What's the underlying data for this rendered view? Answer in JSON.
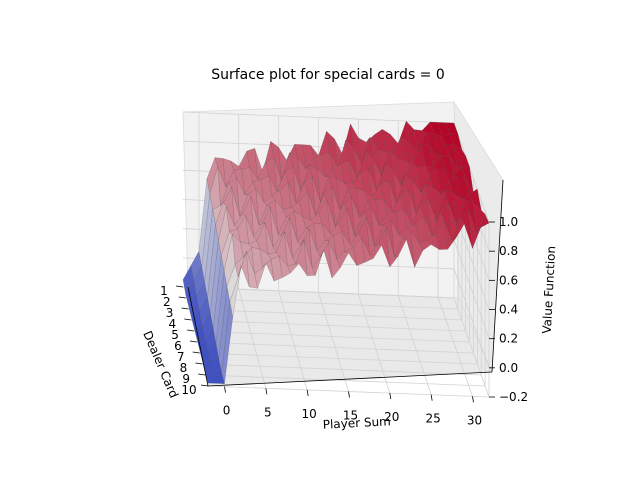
{
  "chart_data": {
    "type": "surface",
    "title": "Surface plot for special cards = 0",
    "xlabel": "Player Sum",
    "ylabel": "Dealer Card",
    "zlabel": "Value Function",
    "x_ticks": [
      "0",
      "5",
      "10",
      "15",
      "20",
      "25",
      "30"
    ],
    "y_ticks": [
      "1",
      "2",
      "3",
      "4",
      "5",
      "6",
      "7",
      "8",
      "9",
      "10"
    ],
    "z_ticks": [
      "−0.2",
      "0.0",
      "0.2",
      "0.4",
      "0.6",
      "0.8",
      "1.0"
    ],
    "xlim": [
      -2,
      32
    ],
    "ylim": [
      1,
      10
    ],
    "zlim": [
      -0.2,
      1.0
    ],
    "grid": true,
    "colormap": "coolwarm",
    "colors": {
      "low": "#3b4cc0",
      "mid": "#dddcdc",
      "high": "#b40426",
      "pane": "#f2f2f2",
      "grid": "#d2d2d2"
    },
    "surface_profile": {
      "x": [
        -2,
        0,
        1,
        2,
        4,
        6,
        8,
        10,
        12,
        14,
        16,
        18,
        20,
        22,
        24,
        26,
        28,
        30,
        32
      ],
      "value": [
        -0.15,
        0.05,
        0.55,
        0.6,
        0.62,
        0.65,
        0.67,
        0.7,
        0.72,
        0.74,
        0.77,
        0.8,
        0.82,
        0.83,
        0.85,
        0.88,
        0.95,
        1.0,
        1.0
      ]
    }
  }
}
